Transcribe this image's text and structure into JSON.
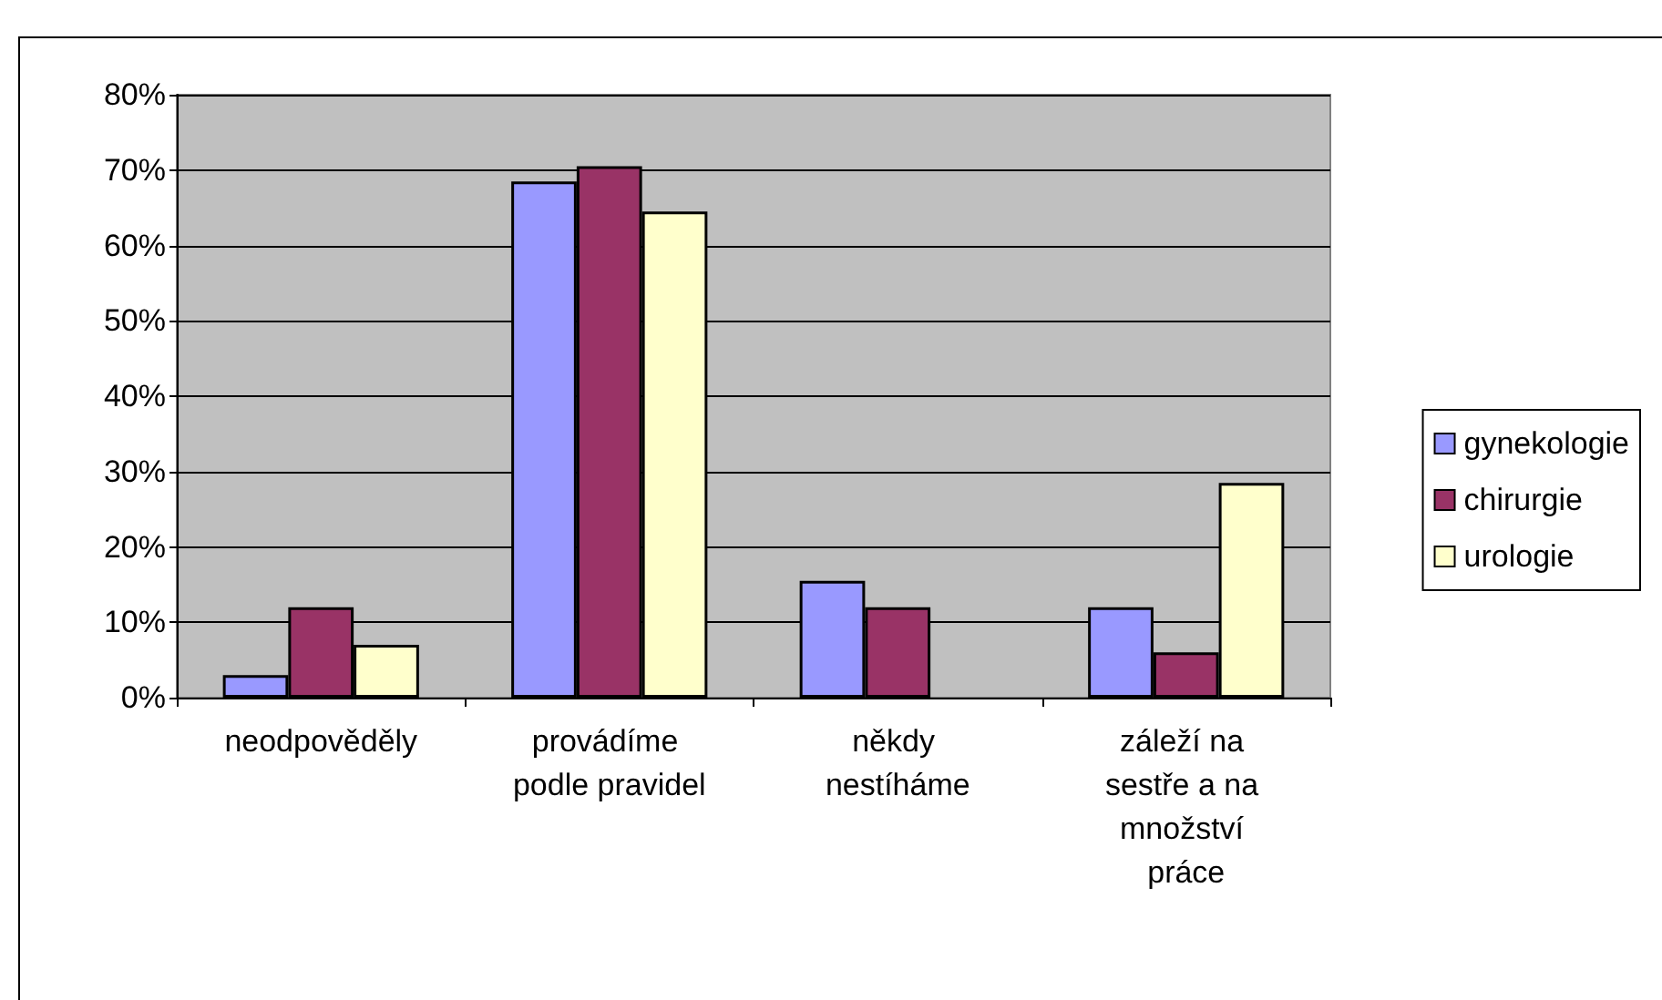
{
  "chart_data": {
    "type": "bar",
    "categories": [
      "neodpověděly",
      "provádíme podle pravidel",
      "někdy nestíháme",
      "záleží na sestře a na množství práce"
    ],
    "series": [
      {
        "name": "gynekologie",
        "color": "#9999ff",
        "values": [
          3,
          68.5,
          15.5,
          12
        ]
      },
      {
        "name": "chirurgie",
        "color": "#993366",
        "values": [
          12,
          70.5,
          12,
          6
        ]
      },
      {
        "name": "urologie",
        "color": "#ffffcc",
        "values": [
          7,
          64.5,
          null,
          28.5
        ]
      }
    ],
    "ylim": [
      0,
      80
    ],
    "yticks": [
      {
        "value": 0,
        "label": "0%"
      },
      {
        "value": 10,
        "label": "10%"
      },
      {
        "value": 20,
        "label": "20%"
      },
      {
        "value": 30,
        "label": "30%"
      },
      {
        "value": 40,
        "label": "40%"
      },
      {
        "value": 50,
        "label": "50%"
      },
      {
        "value": 60,
        "label": "60%"
      },
      {
        "value": 70,
        "label": "70%"
      },
      {
        "value": 80,
        "label": "80%"
      }
    ],
    "grid": "y",
    "legend": "right"
  }
}
